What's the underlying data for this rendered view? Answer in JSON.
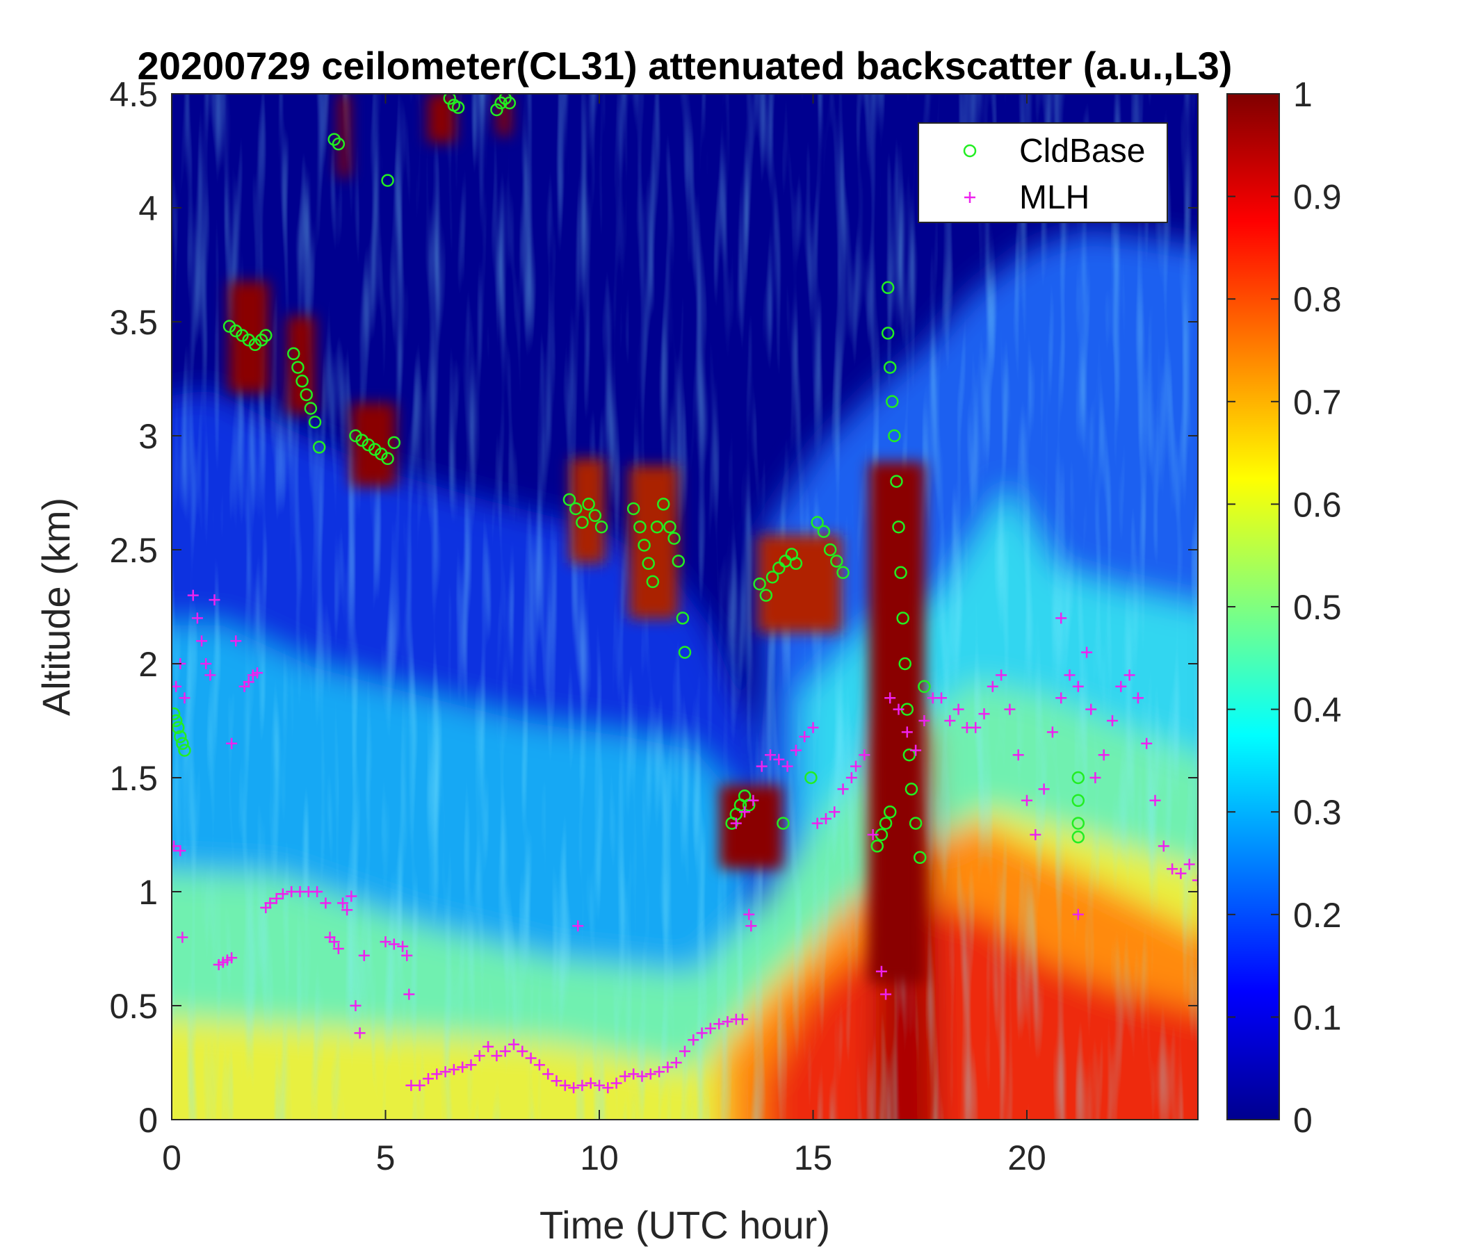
{
  "chart_data": {
    "type": "heatmap",
    "title": "20200729 ceilometer(CL31) attenuated backscatter (a.u.,L3)",
    "xlabel": "Time (UTC hour)",
    "ylabel": "Altitude (km)",
    "xlim": [
      0,
      24
    ],
    "ylim": [
      0,
      4.5
    ],
    "xticks": [
      0,
      5,
      10,
      15,
      20
    ],
    "yticks": [
      0,
      0.5,
      1,
      1.5,
      2,
      2.5,
      3,
      3.5,
      4,
      4.5
    ],
    "colorbar": {
      "colormap": "jet",
      "clim": [
        0,
        1
      ],
      "ticks": [
        0,
        0.1,
        0.2,
        0.3,
        0.4,
        0.5,
        0.6,
        0.7,
        0.8,
        0.9,
        1
      ]
    },
    "legend": {
      "placement": "top-right",
      "entries": [
        {
          "name": "CldBase",
          "marker": "circle",
          "color": "#22ee22"
        },
        {
          "name": "MLH",
          "marker": "plus",
          "color": "#ee22ee"
        }
      ]
    },
    "series": [
      {
        "name": "CldBase",
        "points": [
          [
            0.05,
            1.78
          ],
          [
            0.1,
            1.75
          ],
          [
            0.15,
            1.72
          ],
          [
            0.2,
            1.68
          ],
          [
            0.25,
            1.65
          ],
          [
            0.3,
            1.62
          ],
          [
            1.35,
            3.48
          ],
          [
            1.5,
            3.46
          ],
          [
            1.65,
            3.44
          ],
          [
            1.8,
            3.42
          ],
          [
            1.95,
            3.4
          ],
          [
            2.1,
            3.42
          ],
          [
            2.2,
            3.44
          ],
          [
            2.85,
            3.36
          ],
          [
            2.95,
            3.3
          ],
          [
            3.05,
            3.24
          ],
          [
            3.15,
            3.18
          ],
          [
            3.25,
            3.12
          ],
          [
            3.35,
            3.06
          ],
          [
            3.45,
            2.95
          ],
          [
            3.8,
            4.3
          ],
          [
            3.9,
            4.28
          ],
          [
            4.3,
            3.0
          ],
          [
            4.45,
            2.98
          ],
          [
            4.6,
            2.96
          ],
          [
            4.75,
            2.94
          ],
          [
            4.9,
            2.92
          ],
          [
            5.05,
            2.9
          ],
          [
            5.2,
            2.97
          ],
          [
            5.05,
            4.12
          ],
          [
            6.5,
            4.48
          ],
          [
            6.6,
            4.45
          ],
          [
            6.7,
            4.44
          ],
          [
            7.6,
            4.43
          ],
          [
            7.7,
            4.46
          ],
          [
            7.8,
            4.48
          ],
          [
            7.9,
            4.46
          ],
          [
            9.3,
            2.72
          ],
          [
            9.45,
            2.68
          ],
          [
            9.6,
            2.62
          ],
          [
            9.75,
            2.7
          ],
          [
            9.9,
            2.65
          ],
          [
            10.05,
            2.6
          ],
          [
            10.8,
            2.68
          ],
          [
            10.95,
            2.6
          ],
          [
            11.05,
            2.52
          ],
          [
            11.15,
            2.44
          ],
          [
            11.25,
            2.36
          ],
          [
            11.35,
            2.6
          ],
          [
            11.5,
            2.7
          ],
          [
            11.65,
            2.6
          ],
          [
            11.75,
            2.55
          ],
          [
            11.85,
            2.45
          ],
          [
            11.95,
            2.2
          ],
          [
            12.0,
            2.05
          ],
          [
            13.1,
            1.3
          ],
          [
            13.2,
            1.34
          ],
          [
            13.3,
            1.38
          ],
          [
            13.4,
            1.42
          ],
          [
            13.5,
            1.38
          ],
          [
            13.75,
            2.35
          ],
          [
            13.9,
            2.3
          ],
          [
            14.05,
            2.38
          ],
          [
            14.2,
            2.42
          ],
          [
            14.35,
            2.45
          ],
          [
            14.5,
            2.48
          ],
          [
            14.6,
            2.44
          ],
          [
            14.3,
            1.3
          ],
          [
            14.95,
            1.5
          ],
          [
            15.1,
            2.62
          ],
          [
            15.25,
            2.58
          ],
          [
            15.4,
            2.5
          ],
          [
            15.55,
            2.45
          ],
          [
            15.7,
            2.4
          ],
          [
            16.5,
            1.2
          ],
          [
            16.6,
            1.25
          ],
          [
            16.7,
            1.3
          ],
          [
            16.8,
            1.35
          ],
          [
            16.75,
            3.45
          ],
          [
            16.8,
            3.3
          ],
          [
            16.85,
            3.15
          ],
          [
            16.9,
            3.0
          ],
          [
            16.95,
            2.8
          ],
          [
            17.0,
            2.6
          ],
          [
            17.05,
            2.4
          ],
          [
            17.1,
            2.2
          ],
          [
            17.15,
            2.0
          ],
          [
            17.2,
            1.8
          ],
          [
            17.25,
            1.6
          ],
          [
            17.3,
            1.45
          ],
          [
            17.4,
            1.3
          ],
          [
            17.5,
            1.15
          ],
          [
            17.6,
            1.9
          ],
          [
            16.75,
            3.65
          ],
          [
            21.2,
            1.5
          ],
          [
            21.2,
            1.4
          ],
          [
            21.2,
            1.3
          ],
          [
            21.2,
            1.24
          ]
        ]
      },
      {
        "name": "MLH",
        "points": [
          [
            0.1,
            1.9
          ],
          [
            0.2,
            2.0
          ],
          [
            0.3,
            1.85
          ],
          [
            0.05,
            1.2
          ],
          [
            0.2,
            1.18
          ],
          [
            0.25,
            0.8
          ],
          [
            0.5,
            2.3
          ],
          [
            0.6,
            2.2
          ],
          [
            0.7,
            2.1
          ],
          [
            0.8,
            2.0
          ],
          [
            0.9,
            1.95
          ],
          [
            1.0,
            2.28
          ],
          [
            1.1,
            0.68
          ],
          [
            1.2,
            0.69
          ],
          [
            1.3,
            0.7
          ],
          [
            1.4,
            0.71
          ],
          [
            1.5,
            2.1
          ],
          [
            1.4,
            1.65
          ],
          [
            1.7,
            1.9
          ],
          [
            1.8,
            1.92
          ],
          [
            1.9,
            1.95
          ],
          [
            2.0,
            1.96
          ],
          [
            2.2,
            0.93
          ],
          [
            2.3,
            0.95
          ],
          [
            2.45,
            0.97
          ],
          [
            2.6,
            0.99
          ],
          [
            2.8,
            1.0
          ],
          [
            3.0,
            1.0
          ],
          [
            3.2,
            1.0
          ],
          [
            3.4,
            1.0
          ],
          [
            3.6,
            0.95
          ],
          [
            3.7,
            0.8
          ],
          [
            3.8,
            0.78
          ],
          [
            3.9,
            0.75
          ],
          [
            4.0,
            0.95
          ],
          [
            4.1,
            0.92
          ],
          [
            4.2,
            0.98
          ],
          [
            4.3,
            0.5
          ],
          [
            4.4,
            0.38
          ],
          [
            4.5,
            0.72
          ],
          [
            5.0,
            0.78
          ],
          [
            5.2,
            0.77
          ],
          [
            5.4,
            0.76
          ],
          [
            5.5,
            0.72
          ],
          [
            5.55,
            0.55
          ],
          [
            5.6,
            0.15
          ],
          [
            5.8,
            0.15
          ],
          [
            6.0,
            0.18
          ],
          [
            6.2,
            0.2
          ],
          [
            6.4,
            0.21
          ],
          [
            6.6,
            0.22
          ],
          [
            6.8,
            0.23
          ],
          [
            7.0,
            0.24
          ],
          [
            7.2,
            0.28
          ],
          [
            7.4,
            0.32
          ],
          [
            7.6,
            0.28
          ],
          [
            7.8,
            0.3
          ],
          [
            8.0,
            0.33
          ],
          [
            8.2,
            0.3
          ],
          [
            8.4,
            0.27
          ],
          [
            8.6,
            0.24
          ],
          [
            8.8,
            0.2
          ],
          [
            9.0,
            0.17
          ],
          [
            9.2,
            0.15
          ],
          [
            9.4,
            0.14
          ],
          [
            9.6,
            0.15
          ],
          [
            9.8,
            0.16
          ],
          [
            10.0,
            0.15
          ],
          [
            10.2,
            0.14
          ],
          [
            10.4,
            0.16
          ],
          [
            10.6,
            0.19
          ],
          [
            10.8,
            0.2
          ],
          [
            11.0,
            0.19
          ],
          [
            11.2,
            0.2
          ],
          [
            11.4,
            0.21
          ],
          [
            11.6,
            0.23
          ],
          [
            11.8,
            0.25
          ],
          [
            12.0,
            0.3
          ],
          [
            12.2,
            0.35
          ],
          [
            12.4,
            0.38
          ],
          [
            12.6,
            0.4
          ],
          [
            12.8,
            0.42
          ],
          [
            13.0,
            0.43
          ],
          [
            13.2,
            0.44
          ],
          [
            13.35,
            0.44
          ],
          [
            9.5,
            0.85
          ],
          [
            13.2,
            1.3
          ],
          [
            13.4,
            1.35
          ],
          [
            13.5,
            0.9
          ],
          [
            13.55,
            0.85
          ],
          [
            13.6,
            1.4
          ],
          [
            13.8,
            1.55
          ],
          [
            14.0,
            1.6
          ],
          [
            14.2,
            1.58
          ],
          [
            14.4,
            1.55
          ],
          [
            14.6,
            1.62
          ],
          [
            14.8,
            1.68
          ],
          [
            15.0,
            1.72
          ],
          [
            15.1,
            1.3
          ],
          [
            15.3,
            1.32
          ],
          [
            15.5,
            1.35
          ],
          [
            15.7,
            1.45
          ],
          [
            15.9,
            1.5
          ],
          [
            16.0,
            1.55
          ],
          [
            16.2,
            1.6
          ],
          [
            16.4,
            1.25
          ],
          [
            16.6,
            0.65
          ],
          [
            16.7,
            0.55
          ],
          [
            16.8,
            1.85
          ],
          [
            17.0,
            1.8
          ],
          [
            17.2,
            1.7
          ],
          [
            17.4,
            1.62
          ],
          [
            17.6,
            1.75
          ],
          [
            17.8,
            1.85
          ],
          [
            18.0,
            1.85
          ],
          [
            18.2,
            1.75
          ],
          [
            18.4,
            1.8
          ],
          [
            18.6,
            1.72
          ],
          [
            18.8,
            1.72
          ],
          [
            19.0,
            1.78
          ],
          [
            19.2,
            1.9
          ],
          [
            19.4,
            1.95
          ],
          [
            19.6,
            1.8
          ],
          [
            19.8,
            1.6
          ],
          [
            20.0,
            1.4
          ],
          [
            20.2,
            1.25
          ],
          [
            20.4,
            1.45
          ],
          [
            20.6,
            1.7
          ],
          [
            20.8,
            1.85
          ],
          [
            21.0,
            1.95
          ],
          [
            21.2,
            1.9
          ],
          [
            21.4,
            2.05
          ],
          [
            21.5,
            1.8
          ],
          [
            21.6,
            1.5
          ],
          [
            21.8,
            1.6
          ],
          [
            22.0,
            1.75
          ],
          [
            22.2,
            1.9
          ],
          [
            22.4,
            1.95
          ],
          [
            22.6,
            1.85
          ],
          [
            22.8,
            1.65
          ],
          [
            23.0,
            1.4
          ],
          [
            23.2,
            1.2
          ],
          [
            23.4,
            1.1
          ],
          [
            23.6,
            1.08
          ],
          [
            23.8,
            1.12
          ],
          [
            24.0,
            1.05
          ],
          [
            21.2,
            0.9
          ],
          [
            20.8,
            2.2
          ]
        ]
      }
    ]
  }
}
